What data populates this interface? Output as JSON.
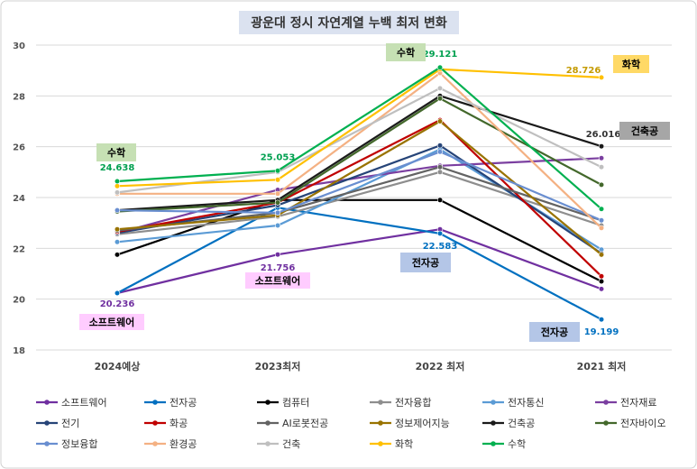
{
  "chart_data": {
    "type": "line",
    "title": "광운대 정시 자연계열 누백 최저 변화",
    "categories": [
      "2024예상",
      "2023최저",
      "2022 최저",
      "2021 최저"
    ],
    "ylim": [
      18,
      30
    ],
    "yticks": [
      18,
      20,
      22,
      24,
      26,
      28,
      30
    ],
    "grid": true,
    "legend_position": "bottom",
    "series": [
      {
        "name": "소프트웨어",
        "color": "#7030a0",
        "values": [
          20.236,
          21.756,
          22.75,
          20.4
        ]
      },
      {
        "name": "전자공",
        "color": "#0070c0",
        "values": [
          20.236,
          23.6,
          22.583,
          19.199
        ]
      },
      {
        "name": "컴퓨터",
        "color": "#000000",
        "values": [
          21.75,
          23.9,
          23.9,
          20.7
        ]
      },
      {
        "name": "전자융합",
        "color": "#8e8e8e",
        "values": [
          22.55,
          23.25,
          25.0,
          22.9
        ]
      },
      {
        "name": "전자통신",
        "color": "#5b9bd5",
        "values": [
          22.25,
          22.9,
          25.9,
          21.95
        ]
      },
      {
        "name": "전자재료",
        "color": "#7b3fa0",
        "values": [
          22.6,
          24.3,
          25.25,
          25.55
        ]
      },
      {
        "name": "전기",
        "color": "#264478",
        "values": [
          22.6,
          23.7,
          26.05,
          21.8
        ]
      },
      {
        "name": "화공",
        "color": "#c00000",
        "values": [
          22.65,
          23.8,
          27.05,
          20.9
        ]
      },
      {
        "name": "AI로봇전공",
        "color": "#636363",
        "values": [
          22.7,
          23.4,
          25.2,
          23.1
        ]
      },
      {
        "name": "정보제어지능",
        "color": "#997300",
        "values": [
          22.75,
          23.3,
          27.0,
          21.75
        ]
      },
      {
        "name": "건축공",
        "color": "#1a1a1a",
        "values": [
          23.5,
          23.9,
          28.0,
          26.016
        ]
      },
      {
        "name": "전자바이오",
        "color": "#43682b",
        "values": [
          23.45,
          23.8,
          27.9,
          24.5
        ]
      },
      {
        "name": "정보융합",
        "color": "#698ed0",
        "values": [
          23.5,
          23.4,
          25.8,
          23.1
        ]
      },
      {
        "name": "환경공",
        "color": "#f4b183",
        "values": [
          24.15,
          24.15,
          28.9,
          22.8
        ]
      },
      {
        "name": "건축",
        "color": "#bfbfbf",
        "values": [
          24.2,
          25.0,
          28.3,
          25.2
        ]
      },
      {
        "name": "화학",
        "color": "#ffc000",
        "values": [
          24.45,
          24.7,
          29.05,
          28.726
        ]
      },
      {
        "name": "수학",
        "color": "#00b050",
        "values": [
          24.638,
          25.053,
          29.121,
          23.55
        ]
      }
    ],
    "data_labels": [
      {
        "text": "24.638",
        "series": "수학",
        "index": 0,
        "color": "#00a050"
      },
      {
        "text": "25.053",
        "series": "수학",
        "index": 1,
        "color": "#00a050"
      },
      {
        "text": "29.121",
        "series": "수학",
        "index": 2,
        "color": "#00a050"
      },
      {
        "text": "28.726",
        "series": "화학",
        "index": 3,
        "color": "#c49a00"
      },
      {
        "text": "20.236",
        "series": "소프트웨어",
        "index": 0,
        "color": "#7030a0"
      },
      {
        "text": "21.756",
        "series": "소프트웨어",
        "index": 1,
        "color": "#7030a0"
      },
      {
        "text": "22.583",
        "series": "전자공",
        "index": 2,
        "color": "#0070c0"
      },
      {
        "text": "19.199",
        "series": "전자공",
        "index": 3,
        "color": "#0070c0"
      },
      {
        "text": "26.016",
        "series": "건축공",
        "index": 3,
        "color": "#333333"
      }
    ],
    "callouts": [
      {
        "text": "수학",
        "fill": "#c6e0b4"
      },
      {
        "text": "수학",
        "fill": "#c6e0b4"
      },
      {
        "text": "화학",
        "fill": "#ffd966"
      },
      {
        "text": "건축공",
        "fill": "#a6a6a6"
      },
      {
        "text": "전자공",
        "fill": "#b4c6e7"
      },
      {
        "text": "전자공",
        "fill": "#b4c6e7"
      },
      {
        "text": "소프트웨어",
        "fill": "#ffccff"
      },
      {
        "text": "소프트웨어",
        "fill": "#ffccff"
      }
    ]
  }
}
